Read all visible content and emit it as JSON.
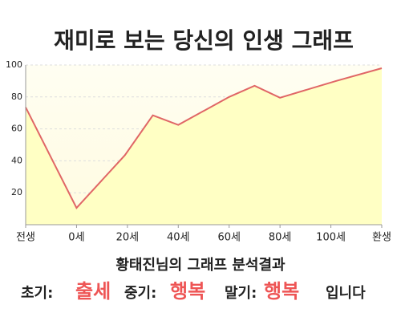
{
  "chart_data": {
    "type": "area",
    "title": "재미로 보는 당신의 인생 그래프",
    "x": [
      -20,
      0,
      19,
      30,
      40,
      60,
      70,
      80,
      102,
      120
    ],
    "series": [
      {
        "color": "#e06666",
        "values": [
          73.5,
          10.5,
          43.5,
          68.5,
          62.5,
          80,
          87,
          79.5,
          90,
          98
        ]
      }
    ],
    "fill": "#ffffc4",
    "xlim": [
      -20,
      120
    ],
    "xticks": [
      {
        "value": -20,
        "label": "전생"
      },
      {
        "value": 0,
        "label": "0세"
      },
      {
        "value": 20,
        "label": "20세"
      },
      {
        "value": 40,
        "label": "40세"
      },
      {
        "value": 60,
        "label": "60세"
      },
      {
        "value": 80,
        "label": "80세"
      },
      {
        "value": 100,
        "label": "100세"
      },
      {
        "value": 120,
        "label": "환생"
      }
    ],
    "ylim": [
      0,
      100
    ],
    "yticks": [
      20,
      40,
      60,
      80,
      100
    ],
    "grid": true
  },
  "result": {
    "heading": "황태진님의 그래프 분석결과",
    "early_label": "초기:",
    "early": "출세",
    "middle_label": "중기:",
    "middle": "행복",
    "late_label": "말기:",
    "late": "행복",
    "ending": "입니다"
  }
}
